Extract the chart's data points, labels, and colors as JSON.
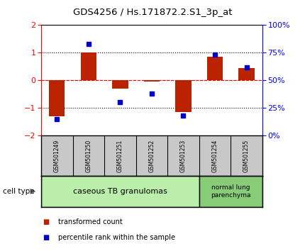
{
  "title": "GDS4256 / Hs.171872.2.S1_3p_at",
  "samples": [
    "GSM501249",
    "GSM501250",
    "GSM501251",
    "GSM501252",
    "GSM501253",
    "GSM501254",
    "GSM501255"
  ],
  "red_values": [
    -1.3,
    1.0,
    -0.3,
    -0.05,
    -1.15,
    0.85,
    0.45
  ],
  "blue_values_pct": [
    15,
    83,
    30,
    38,
    18,
    73,
    62
  ],
  "ylim": [
    -2,
    2
  ],
  "right_ylim": [
    0,
    100
  ],
  "right_yticks": [
    0,
    25,
    50,
    75,
    100
  ],
  "right_yticklabels": [
    "0%",
    "25%",
    "50%",
    "75%",
    "100%"
  ],
  "dotted_lines": [
    1,
    0,
    -1
  ],
  "bar_width": 0.5,
  "red_color": "#BB2200",
  "blue_color": "#0000CC",
  "group1_label": "caseous TB granulomas",
  "group1_color": "#BBEEAA",
  "group2_label": "normal lung\nparenchyma",
  "group2_color": "#88CC77",
  "cell_type_label": "cell type",
  "legend_red": "transformed count",
  "legend_blue": "percentile rank within the sample",
  "sample_bg_color": "#C8C8C8",
  "plot_bg": "#FFFFFF"
}
